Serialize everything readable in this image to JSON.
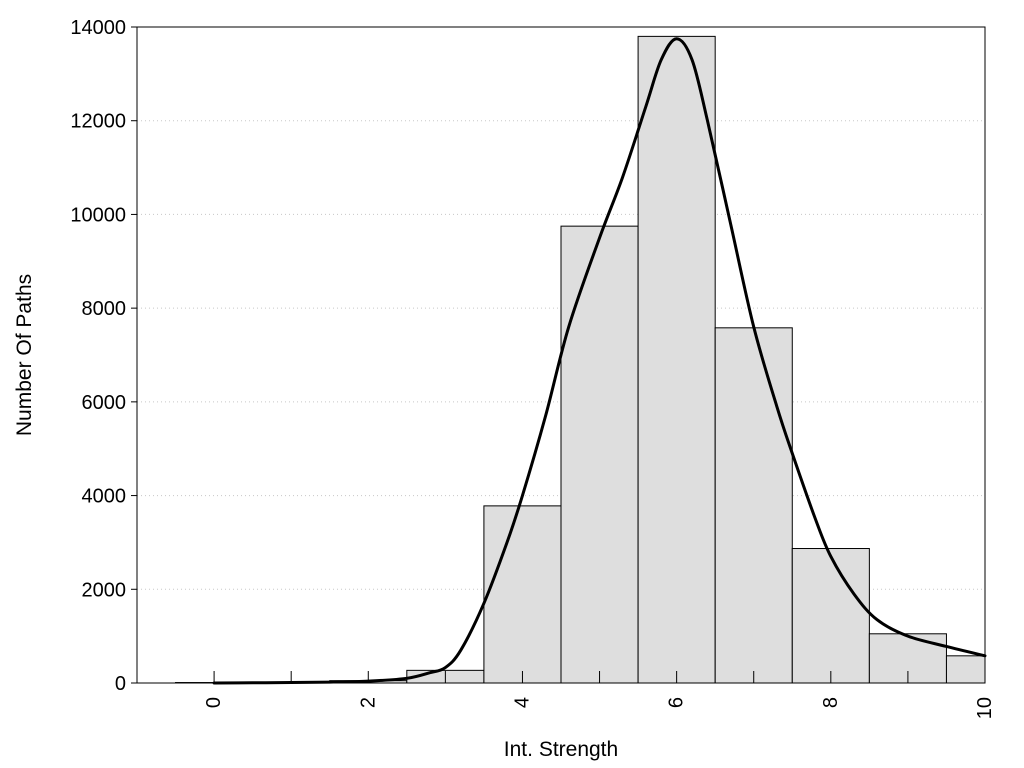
{
  "chart_data": {
    "type": "bar",
    "title": "",
    "xlabel": "Int. Strength",
    "ylabel": "Number Of Paths",
    "xlim": [
      -1,
      10
    ],
    "ylim": [
      0,
      14000
    ],
    "grid": true,
    "x_ticks": [
      0,
      2,
      4,
      6,
      8,
      10
    ],
    "y_ticks": [
      0,
      2000,
      4000,
      6000,
      8000,
      10000,
      12000,
      14000
    ],
    "bars": [
      {
        "x": 0,
        "value": 10
      },
      {
        "x": 1,
        "value": 20
      },
      {
        "x": 2,
        "value": 50
      },
      {
        "x": 3,
        "value": 270
      },
      {
        "x": 4,
        "value": 3780
      },
      {
        "x": 5,
        "value": 9750
      },
      {
        "x": 6,
        "value": 13800
      },
      {
        "x": 7,
        "value": 7580
      },
      {
        "x": 8,
        "value": 2870
      },
      {
        "x": 9,
        "value": 1050
      },
      {
        "x": 10,
        "value": 580
      }
    ],
    "density_curve": [
      {
        "x": 0,
        "y": 0
      },
      {
        "x": 0.5,
        "y": 5
      },
      {
        "x": 1,
        "y": 10
      },
      {
        "x": 1.5,
        "y": 20
      },
      {
        "x": 2,
        "y": 40
      },
      {
        "x": 2.5,
        "y": 100
      },
      {
        "x": 2.8,
        "y": 220
      },
      {
        "x": 3.0,
        "y": 330
      },
      {
        "x": 3.2,
        "y": 700
      },
      {
        "x": 3.5,
        "y": 1700
      },
      {
        "x": 3.8,
        "y": 3000
      },
      {
        "x": 4.0,
        "y": 4000
      },
      {
        "x": 4.3,
        "y": 5700
      },
      {
        "x": 4.6,
        "y": 7600
      },
      {
        "x": 5.0,
        "y": 9500
      },
      {
        "x": 5.3,
        "y": 10800
      },
      {
        "x": 5.6,
        "y": 12300
      },
      {
        "x": 5.8,
        "y": 13300
      },
      {
        "x": 6.0,
        "y": 13750
      },
      {
        "x": 6.2,
        "y": 13300
      },
      {
        "x": 6.4,
        "y": 12000
      },
      {
        "x": 6.7,
        "y": 9800
      },
      {
        "x": 7.0,
        "y": 7600
      },
      {
        "x": 7.3,
        "y": 5900
      },
      {
        "x": 7.5,
        "y": 4900
      },
      {
        "x": 7.8,
        "y": 3500
      },
      {
        "x": 8.0,
        "y": 2700
      },
      {
        "x": 8.3,
        "y": 1900
      },
      {
        "x": 8.6,
        "y": 1350
      },
      {
        "x": 9.0,
        "y": 1000
      },
      {
        "x": 9.5,
        "y": 780
      },
      {
        "x": 10,
        "y": 580
      }
    ]
  }
}
